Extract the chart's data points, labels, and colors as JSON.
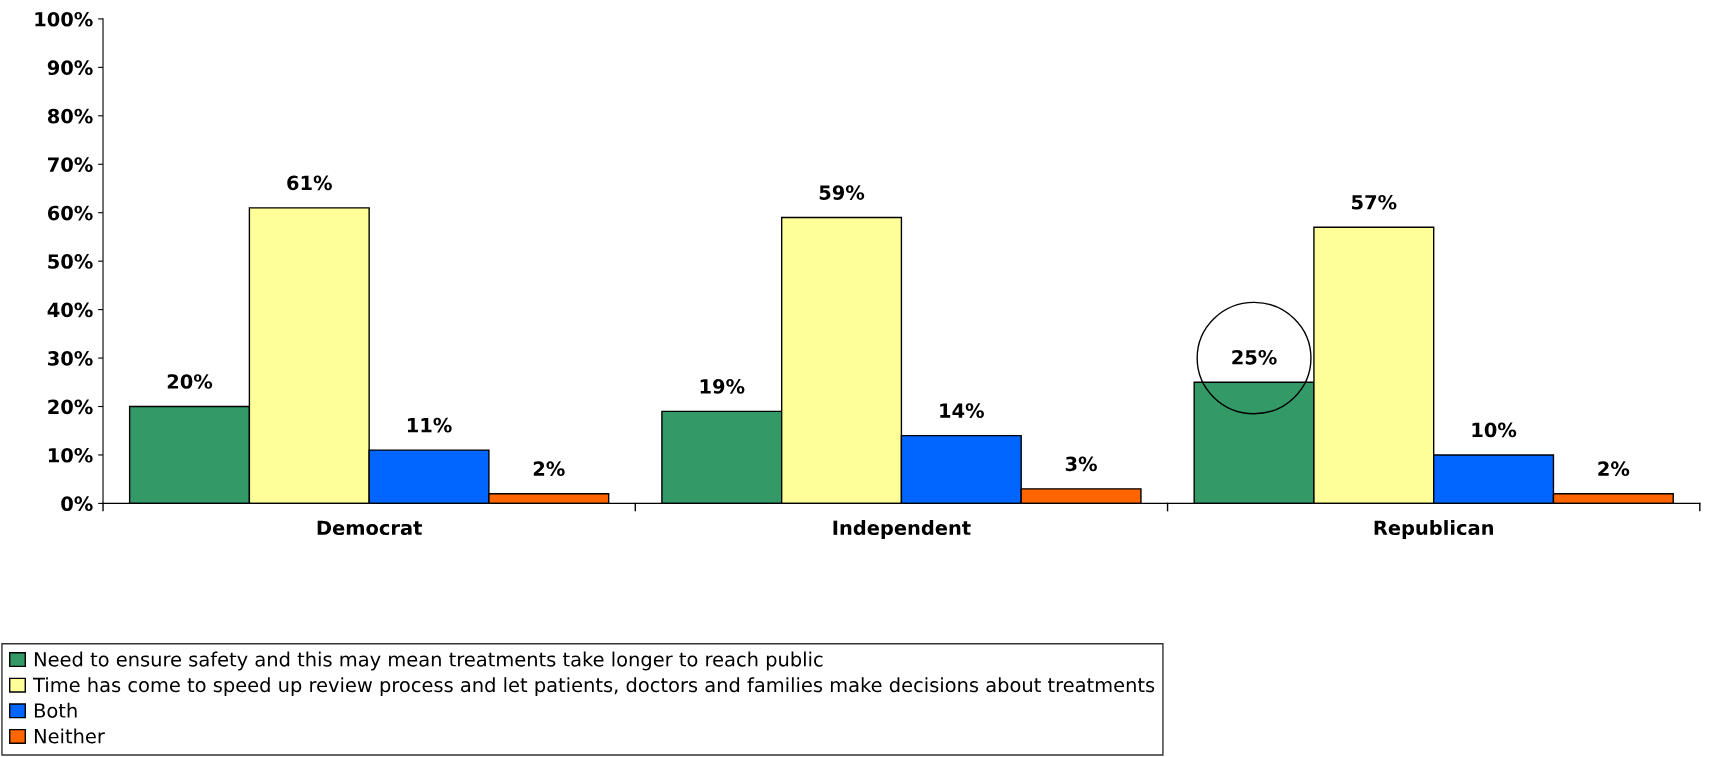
{
  "chart_data": {
    "type": "bar",
    "categories": [
      "Democrat",
      "Independent",
      "Republican"
    ],
    "series": [
      {
        "name": "Need to ensure safety and this may mean treatments take longer to reach public",
        "color": "#339966",
        "values": [
          20,
          19,
          25
        ],
        "value_labels": [
          "20%",
          "19%",
          "25%"
        ]
      },
      {
        "name": "Time has come to speed up review process and let patients, doctors and families make decisions about treatments",
        "color": "#ffff99",
        "values": [
          61,
          59,
          57
        ],
        "value_labels": [
          "61%",
          "59%",
          "57%"
        ]
      },
      {
        "name": "Both",
        "color": "#0066ff",
        "values": [
          11,
          14,
          10
        ],
        "value_labels": [
          "11%",
          "14%",
          "10%"
        ]
      },
      {
        "name": "Neither",
        "color": "#ff6600",
        "values": [
          2,
          3,
          2
        ],
        "value_labels": [
          "2%",
          "3%",
          "2%"
        ]
      }
    ],
    "ylim": [
      0,
      100
    ],
    "yticks": [
      {
        "value": 0,
        "label": "0%"
      },
      {
        "value": 10,
        "label": "10%"
      },
      {
        "value": 20,
        "label": "20%"
      },
      {
        "value": 30,
        "label": "30%"
      },
      {
        "value": 40,
        "label": "40%"
      },
      {
        "value": 50,
        "label": "50%"
      },
      {
        "value": 60,
        "label": "60%"
      },
      {
        "value": 70,
        "label": "70%"
      },
      {
        "value": 80,
        "label": "80%"
      },
      {
        "value": 90,
        "label": "90%"
      },
      {
        "value": 100,
        "label": "100%"
      }
    ],
    "grid": false,
    "legend": "bottom"
  }
}
